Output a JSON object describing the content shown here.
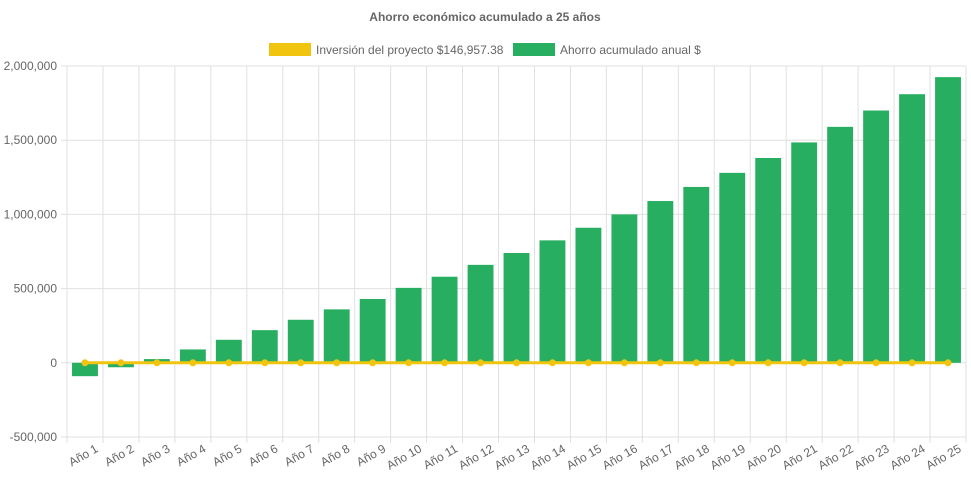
{
  "chart_data": {
    "type": "bar",
    "title": "Ahorro económico acumulado a 25 años",
    "categories": [
      "Año 1",
      "Año 2",
      "Año 3",
      "Año 4",
      "Año 5",
      "Año 6",
      "Año 7",
      "Año 8",
      "Año 9",
      "Año 10",
      "Año 11",
      "Año 12",
      "Año 13",
      "Año 14",
      "Año 15",
      "Año 16",
      "Año 17",
      "Año 18",
      "Año 19",
      "Año 20",
      "Año 21",
      "Año 22",
      "Año 23",
      "Año 24",
      "Año 25"
    ],
    "series": [
      {
        "name": "Inversión del proyecto $146,957.38",
        "type": "line",
        "color": "#f1c40f",
        "values": [
          0,
          0,
          0,
          0,
          0,
          0,
          0,
          0,
          0,
          0,
          0,
          0,
          0,
          0,
          0,
          0,
          0,
          0,
          0,
          0,
          0,
          0,
          0,
          0,
          0
        ]
      },
      {
        "name": "Ahorro acumulado anual $",
        "type": "bar",
        "color": "#27ae60",
        "values": [
          -90000,
          -30000,
          25000,
          90000,
          155000,
          220000,
          290000,
          360000,
          430000,
          505000,
          580000,
          660000,
          740000,
          825000,
          910000,
          1000000,
          1090000,
          1185000,
          1280000,
          1380000,
          1485000,
          1590000,
          1700000,
          1810000,
          1925000
        ]
      }
    ],
    "yticks": [
      "2,000,000",
      "1,500,000",
      "1,000,000",
      "500,000",
      "0",
      "-500,000"
    ],
    "ylim": [
      -500000,
      2000000
    ],
    "grid": true,
    "legend_position": "top"
  }
}
